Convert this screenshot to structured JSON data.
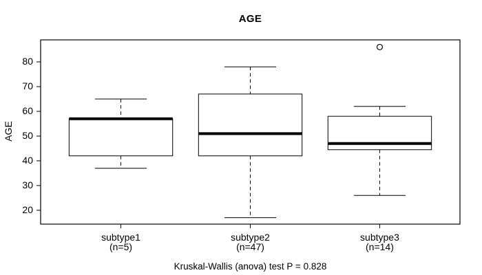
{
  "chart_data": {
    "type": "boxplot",
    "title": "AGE",
    "ylabel": "AGE",
    "xlabel": "",
    "annotation": "Kruskal-Wallis (anova) test P = 0.828",
    "ylim": [
      14.4,
      88.9
    ],
    "yticks": [
      20,
      30,
      40,
      50,
      60,
      70,
      80
    ],
    "grid": false,
    "legend": "none",
    "categories": [
      {
        "label": "subtype1",
        "sublabel": "(n=5)",
        "min": 37,
        "q1": 42,
        "median": 57,
        "q3": 57,
        "max": 65,
        "outliers": []
      },
      {
        "label": "subtype2",
        "sublabel": "(n=47)",
        "min": 17,
        "q1": 42,
        "median": 51,
        "q3": 67,
        "max": 78,
        "outliers": []
      },
      {
        "label": "subtype3",
        "sublabel": "(n=14)",
        "min": 26,
        "q1": 44.5,
        "median": 47,
        "q3": 58,
        "max": 62,
        "outliers": [
          86
        ]
      }
    ],
    "colors": {
      "line": "#000000",
      "box_fill": "#ffffff",
      "background": "#ffffff"
    }
  }
}
